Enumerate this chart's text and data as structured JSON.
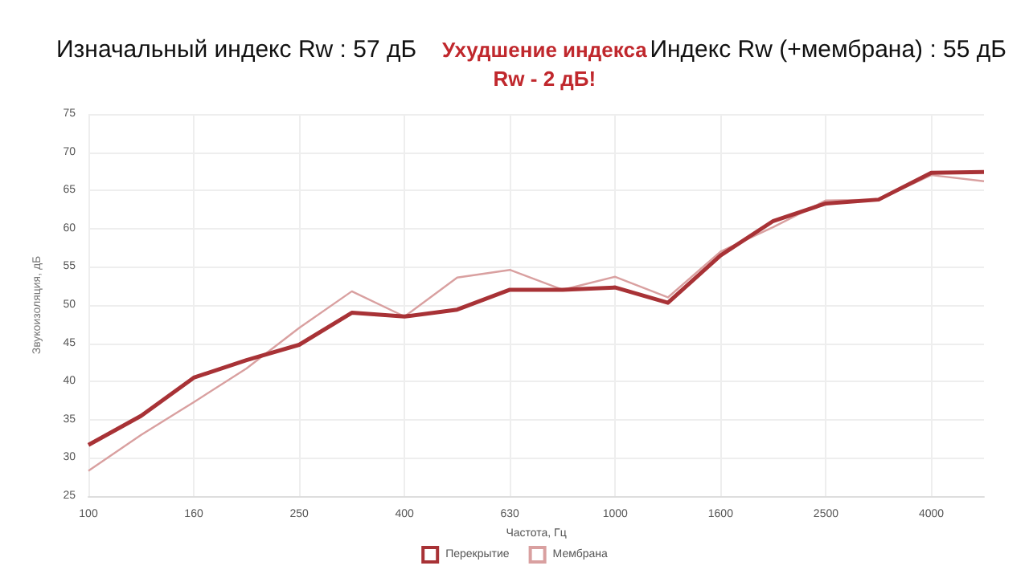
{
  "chart_data": {
    "type": "line",
    "xlabel": "Частота, Гц",
    "ylabel": "Звукоизоляция, дБ",
    "annotations": [
      "Изначальный индекс Rw : 57 дБ",
      "Ухудшение индекса\nRw - 2 дБ!",
      "Индекс Rw (+мембрана) : 55 дБ"
    ],
    "categories": [
      "100",
      null,
      "160",
      null,
      "250",
      null,
      "400",
      null,
      "630",
      null,
      "1000",
      null,
      "1600",
      null,
      "2500",
      null,
      "4000",
      null
    ],
    "series": [
      {
        "name": "Перекрытие",
        "color": "#a83236",
        "values": [
          31.7,
          35.5,
          40.5,
          42.8,
          44.8,
          49,
          48.5,
          49.4,
          52,
          52,
          52.3,
          50.3,
          56.5,
          61,
          63.3,
          63.8,
          67.3,
          67.4
        ]
      },
      {
        "name": "Мембрана",
        "color": "#d9a0a0",
        "values": [
          28.3,
          33,
          37.3,
          41.7,
          47,
          51.8,
          48.5,
          53.6,
          54.6,
          52,
          53.7,
          51,
          57,
          60.2,
          63.7,
          63.8,
          67,
          66.2
        ]
      }
    ],
    "ylim": [
      25,
      75
    ],
    "yticks": [
      25,
      30,
      35,
      40,
      45,
      50,
      55,
      60,
      65,
      70,
      75
    ],
    "grid": true,
    "legend": "bottom",
    "marker": "none",
    "line_style": "solid"
  }
}
